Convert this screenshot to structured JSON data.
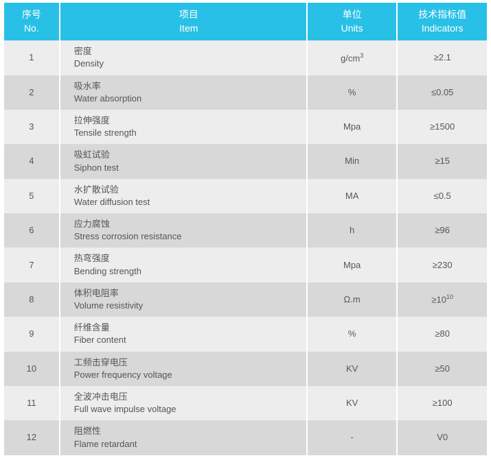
{
  "header": {
    "no_cn": "序号",
    "no_en": "No.",
    "item_cn": "项目",
    "item_en": "Item",
    "units_cn": "单位",
    "units_en": "Units",
    "ind_cn": "技术指标值",
    "ind_en": "Indicators"
  },
  "colors": {
    "header_bg": "#29c0e7",
    "header_text": "#ffffff",
    "row_odd_bg": "#ededed",
    "row_even_bg": "#d8d8d8",
    "text": "#555555"
  },
  "rows": [
    {
      "no": "1",
      "cn": "密度",
      "en": "Density",
      "units_html": "g/cm<sup>3</sup>",
      "ind": "≥2.1"
    },
    {
      "no": "2",
      "cn": "吸水率",
      "en": "Water absorption",
      "units_html": "%",
      "ind": "≤0.05"
    },
    {
      "no": "3",
      "cn": "拉伸强度",
      "en": "Tensile strength",
      "units_html": "Mpa",
      "ind": "≥1500"
    },
    {
      "no": "4",
      "cn": "吸虹试验",
      "en": "Siphon test",
      "units_html": "Min",
      "ind": "≥15"
    },
    {
      "no": "5",
      "cn": "水扩散试验",
      "en": "Water diffusion test",
      "units_html": "MA",
      "ind": "≤0.5"
    },
    {
      "no": "6",
      "cn": "应力腐蚀",
      "en": "Stress corrosion resistance",
      "units_html": "h",
      "ind": "≥96"
    },
    {
      "no": "7",
      "cn": "热弯强度",
      "en": "Bending strength",
      "units_html": "Mpa",
      "ind": "≥230"
    },
    {
      "no": "8",
      "cn": "体积电阻率",
      "en": "Volume resistivity",
      "units_html": "Ω.m",
      "ind_html": "≥10<sup>10</sup>"
    },
    {
      "no": "9",
      "cn": "纤维含量",
      "en": "Fiber content",
      "units_html": "%",
      "ind": "≥80"
    },
    {
      "no": "10",
      "cn": "工频击穿电压",
      "en": "Power frequency voltage",
      "units_html": "KV",
      "ind": "≥50"
    },
    {
      "no": "11",
      "cn": "全波冲击电压",
      "en": "Full wave impulse voltage",
      "units_html": "KV",
      "ind": "≥100"
    },
    {
      "no": "12",
      "cn": "阻燃性",
      "en": "Flame retardant",
      "units_html": "-",
      "ind": "V0"
    }
  ]
}
